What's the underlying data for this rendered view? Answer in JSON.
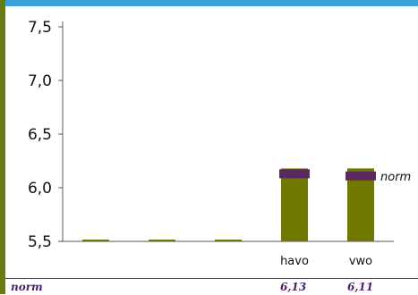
{
  "chart_data": {
    "type": "bar",
    "categories": [
      "",
      "",
      "",
      "havo",
      "vwo"
    ],
    "values": [
      5.5,
      5.5,
      5.5,
      6.18,
      6.18
    ],
    "norm_values": [
      null,
      null,
      null,
      6.13,
      6.11
    ],
    "norm_label": "norm",
    "yticks": [
      "5,5",
      "6,0",
      "6,5",
      "7,0",
      "7,5"
    ],
    "ylim": [
      5.5,
      7.5
    ],
    "colors": {
      "bar": "#707800",
      "norm_marker": "#5a2a5e",
      "norm_text": "#4a1e6e"
    },
    "grid": false,
    "title": ""
  },
  "table": {
    "row_label": "norm",
    "cells": [
      "",
      "",
      "",
      "6,13",
      "6,11"
    ]
  }
}
